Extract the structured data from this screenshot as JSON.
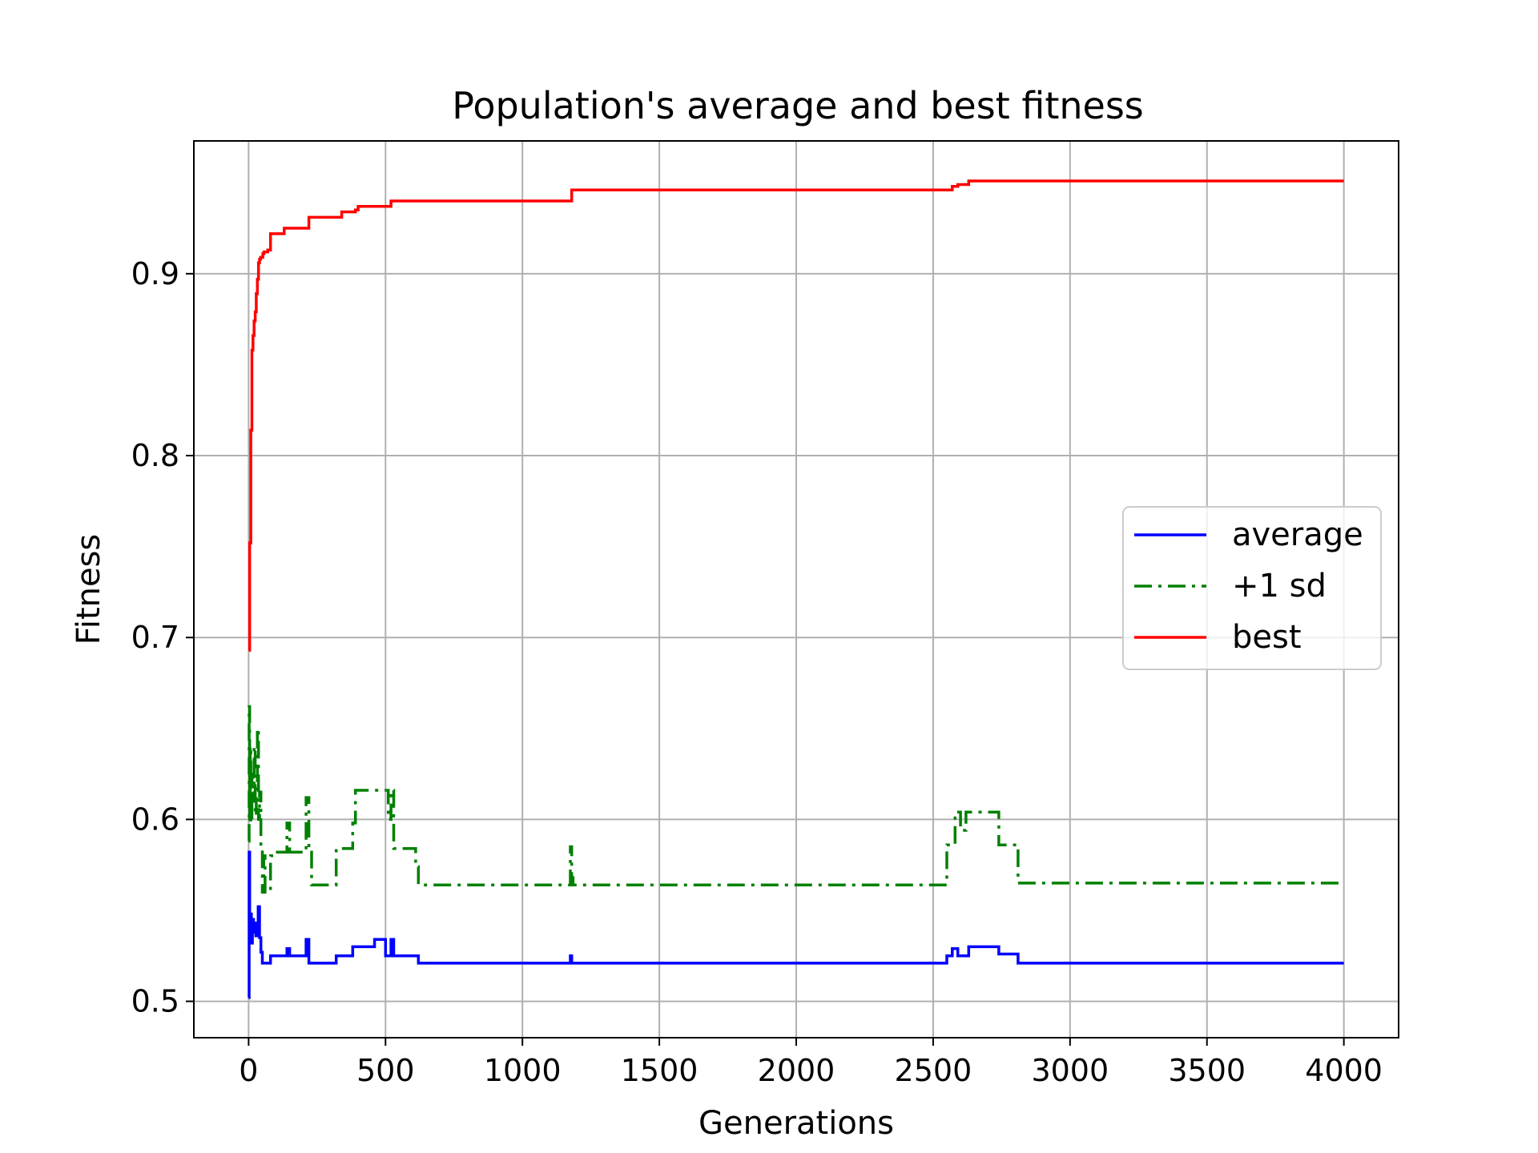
{
  "chart_data": {
    "type": "line",
    "title": "Population's average and best fitness",
    "xlabel": "Generations",
    "ylabel": "Fitness",
    "xlim": [
      -200,
      4200
    ],
    "ylim": [
      0.48,
      0.973
    ],
    "xticks": [
      0,
      500,
      1000,
      1500,
      2000,
      2500,
      3000,
      3500,
      4000
    ],
    "xtick_labels": [
      "0",
      "500",
      "1000",
      "1500",
      "2000",
      "2500",
      "3000",
      "3500",
      "4000"
    ],
    "yticks": [
      0.5,
      0.6,
      0.7,
      0.8,
      0.9
    ],
    "ytick_labels": [
      "0.5",
      "0.6",
      "0.7",
      "0.8",
      "0.9"
    ],
    "grid": true,
    "legend_position": "center-right",
    "series": [
      {
        "name": "average",
        "color": "#0000ff",
        "dash": "solid",
        "x": [
          0,
          2,
          4,
          6,
          10,
          14,
          18,
          22,
          26,
          30,
          35,
          40,
          45,
          50,
          60,
          80,
          90,
          130,
          140,
          150,
          210,
          220,
          230,
          320,
          380,
          460,
          500,
          520,
          530,
          610,
          620,
          1170,
          1175,
          1180,
          1185,
          2550,
          2570,
          2590,
          2610,
          2630,
          2700,
          2740,
          2800,
          2810,
          4000
        ],
        "y": [
          0.502,
          0.582,
          0.535,
          0.548,
          0.532,
          0.545,
          0.538,
          0.543,
          0.536,
          0.541,
          0.552,
          0.535,
          0.527,
          0.521,
          0.521,
          0.525,
          0.525,
          0.525,
          0.529,
          0.525,
          0.534,
          0.521,
          0.521,
          0.525,
          0.53,
          0.534,
          0.525,
          0.534,
          0.525,
          0.525,
          0.521,
          0.521,
          0.525,
          0.521,
          0.521,
          0.525,
          0.529,
          0.525,
          0.525,
          0.53,
          0.53,
          0.526,
          0.526,
          0.521,
          0.521
        ]
      },
      {
        "name": "+1 sd",
        "color": "#008000",
        "dash": "dashdot",
        "x": [
          0,
          2,
          4,
          6,
          8,
          12,
          16,
          20,
          24,
          28,
          32,
          36,
          40,
          45,
          50,
          55,
          60,
          70,
          80,
          90,
          130,
          140,
          150,
          210,
          220,
          230,
          320,
          380,
          390,
          500,
          510,
          520,
          530,
          600,
          610,
          620,
          1170,
          1175,
          1180,
          1185,
          2550,
          2560,
          2580,
          2600,
          2620,
          2640,
          2720,
          2740,
          2800,
          2810,
          4000
        ],
        "y": [
          0.588,
          0.662,
          0.6,
          0.64,
          0.598,
          0.625,
          0.61,
          0.64,
          0.602,
          0.62,
          0.65,
          0.6,
          0.615,
          0.585,
          0.56,
          0.58,
          0.56,
          0.56,
          0.58,
          0.582,
          0.582,
          0.598,
          0.582,
          0.612,
          0.582,
          0.564,
          0.584,
          0.598,
          0.616,
          0.616,
          0.6,
          0.616,
          0.584,
          0.584,
          0.574,
          0.564,
          0.564,
          0.585,
          0.568,
          0.564,
          0.586,
          0.586,
          0.604,
          0.594,
          0.604,
          0.604,
          0.604,
          0.586,
          0.586,
          0.565,
          0.565
        ]
      },
      {
        "name": "best",
        "color": "#ff0000",
        "dash": "solid",
        "x": [
          0,
          4,
          8,
          12,
          16,
          20,
          24,
          28,
          32,
          36,
          40,
          44,
          48,
          52,
          56,
          60,
          70,
          80,
          90,
          130,
          140,
          220,
          230,
          340,
          350,
          390,
          400,
          500,
          520,
          1170,
          1180,
          2550,
          2570,
          2590,
          2620,
          2630,
          4000
        ],
        "y": [
          0.693,
          0.752,
          0.814,
          0.858,
          0.866,
          0.874,
          0.879,
          0.889,
          0.897,
          0.906,
          0.908,
          0.909,
          0.909,
          0.911,
          0.912,
          0.912,
          0.913,
          0.922,
          0.922,
          0.925,
          0.925,
          0.931,
          0.931,
          0.934,
          0.934,
          0.935,
          0.937,
          0.937,
          0.94,
          0.94,
          0.946,
          0.946,
          0.948,
          0.949,
          0.949,
          0.951,
          0.951
        ]
      }
    ]
  }
}
